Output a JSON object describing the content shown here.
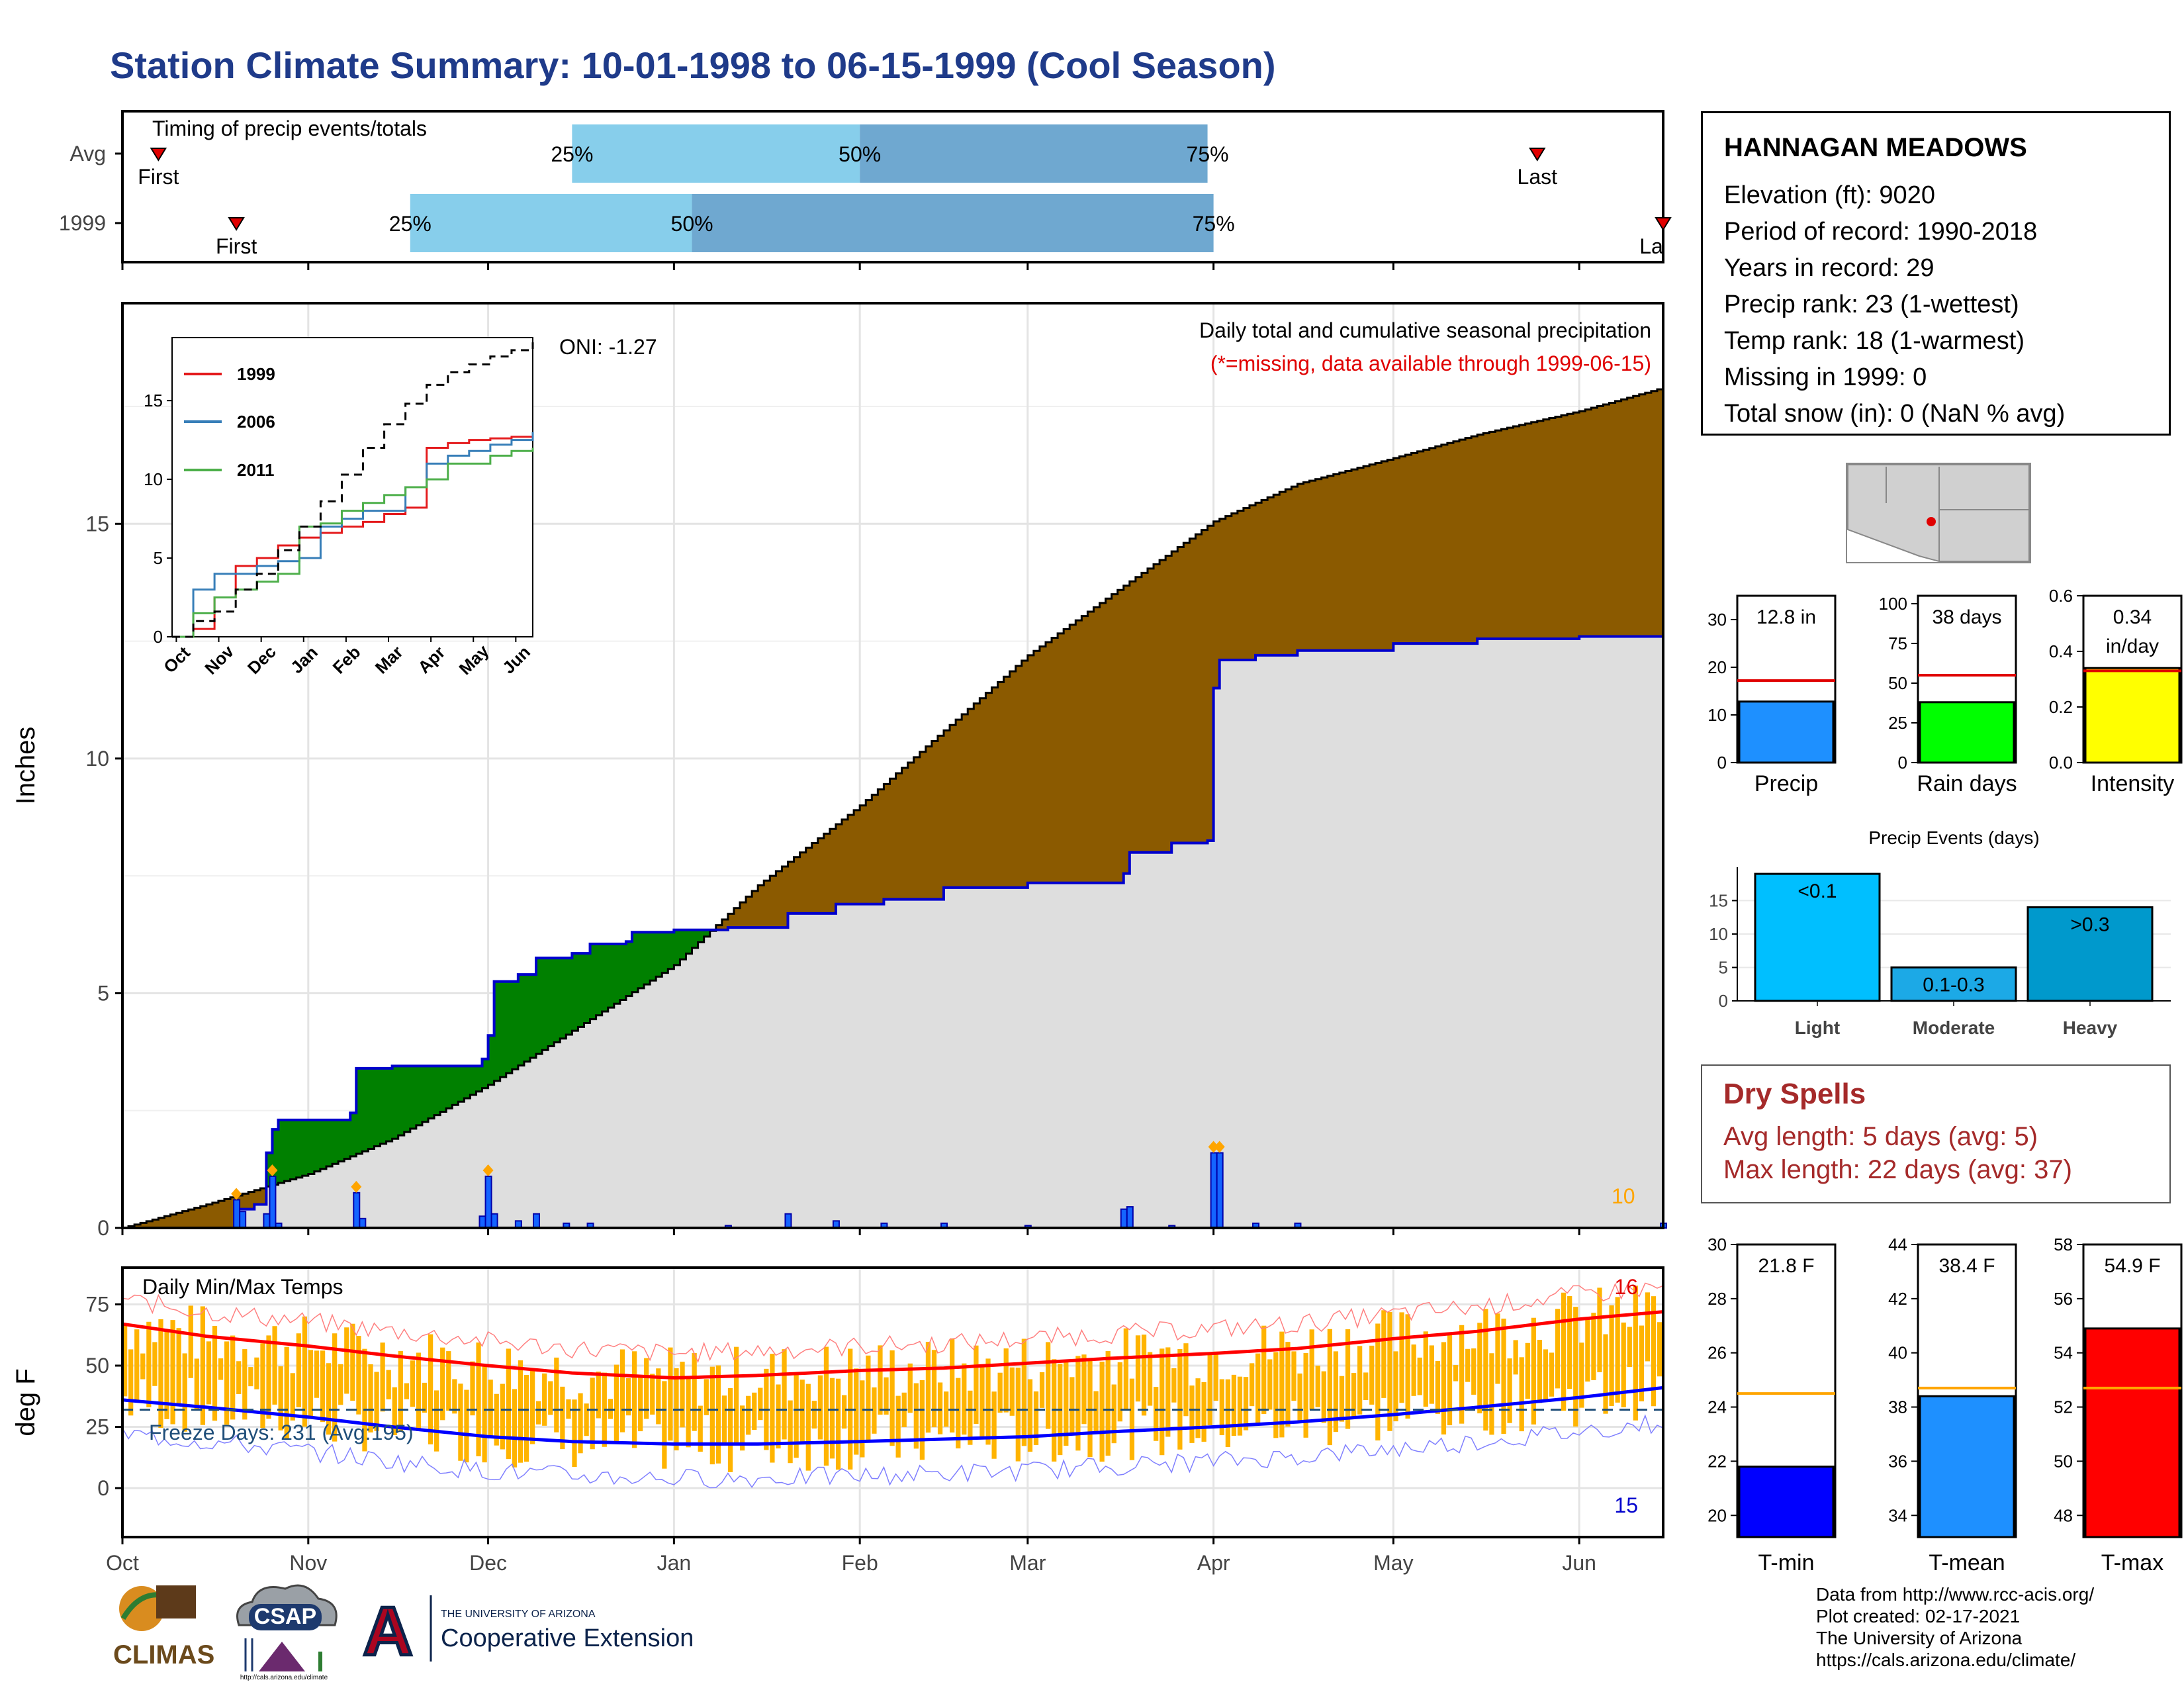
{
  "title": "Station Climate Summary: 10-01-1998 to 06-15-1999 (Cool Season)",
  "timing": {
    "label": "Timing of precip events/totals",
    "rows": [
      {
        "name": "Avg",
        "first_label": "First",
        "last_label": "Last",
        "first": "1998-10-07",
        "last": "1999-05-25",
        "p25": "1998-12-15",
        "p50": "1999-02-01",
        "p75": "1999-03-31",
        "p25_label": "25%",
        "p50_label": "50%",
        "p75_label": "75%"
      },
      {
        "name": "1999",
        "first_label": "First",
        "last_label": "La",
        "first": "1998-10-20",
        "last": "1999-06-15",
        "p25": "1998-11-18",
        "p50": "1999-01-04",
        "p75": "1999-04-01",
        "p25_label": "25%",
        "p50_label": "50%",
        "p75_label": "75%"
      }
    ]
  },
  "chart_data": [
    {
      "type": "area",
      "title": "Daily total and cumulative seasonal precipitation",
      "subtitle": "(*=missing, data available through 1999-06-15)",
      "ylabel": "Inches",
      "ylim": [
        0,
        19.7
      ],
      "yticks": [
        0,
        5,
        10,
        15
      ],
      "xticks": [
        "Oct",
        "Nov",
        "Dec",
        "Jan",
        "Feb",
        "Mar",
        "Apr",
        "May",
        "Jun"
      ],
      "oni_label": "ONI: -1.27",
      "count_label": "10",
      "avg_cumulative": {
        "name": "average",
        "points": [
          [
            "1998-10-01",
            0
          ],
          [
            "1998-10-15",
            0.5
          ],
          [
            "1998-11-01",
            1.15
          ],
          [
            "1998-11-15",
            1.9
          ],
          [
            "1998-12-01",
            3.05
          ],
          [
            "1998-12-15",
            4.2
          ],
          [
            "1999-01-01",
            5.6
          ],
          [
            "1999-01-15",
            7.3
          ],
          [
            "1999-02-01",
            9.0
          ],
          [
            "1999-02-15",
            10.6
          ],
          [
            "1999-03-01",
            12.2
          ],
          [
            "1999-03-15",
            13.5
          ],
          [
            "1999-04-01",
            15.05
          ],
          [
            "1999-04-15",
            15.85
          ],
          [
            "1999-05-01",
            16.4
          ],
          [
            "1999-05-15",
            16.9
          ],
          [
            "1999-06-01",
            17.4
          ],
          [
            "1999-06-15",
            17.9
          ]
        ]
      },
      "cumulative_1999": {
        "name": "1999",
        "points": [
          [
            "1998-10-01",
            0
          ],
          [
            "1998-10-20",
            0.4
          ],
          [
            "1998-10-23",
            0.5
          ],
          [
            "1998-10-25",
            1.6
          ],
          [
            "1998-10-26",
            2.1
          ],
          [
            "1998-10-27",
            2.3
          ],
          [
            "1998-11-08",
            2.45
          ],
          [
            "1998-11-09",
            3.4
          ],
          [
            "1998-11-15",
            3.45
          ],
          [
            "1998-11-30",
            3.6
          ],
          [
            "1998-12-01",
            4.1
          ],
          [
            "1998-12-02",
            5.25
          ],
          [
            "1998-12-06",
            5.4
          ],
          [
            "1998-12-09",
            5.75
          ],
          [
            "1998-12-15",
            5.85
          ],
          [
            "1998-12-18",
            6.05
          ],
          [
            "1998-12-24",
            6.1
          ],
          [
            "1998-12-25",
            6.3
          ],
          [
            "1999-01-01",
            6.35
          ],
          [
            "1999-01-04",
            6.35
          ],
          [
            "1999-01-10",
            6.4
          ],
          [
            "1999-01-20",
            6.7
          ],
          [
            "1999-01-28",
            6.9
          ],
          [
            "1999-02-05",
            7.0
          ],
          [
            "1999-02-15",
            7.25
          ],
          [
            "1999-03-01",
            7.35
          ],
          [
            "1999-03-17",
            7.55
          ],
          [
            "1999-03-18",
            8.0
          ],
          [
            "1999-03-25",
            8.2
          ],
          [
            "1999-03-31",
            8.25
          ],
          [
            "1999-04-01",
            11.5
          ],
          [
            "1999-04-02",
            12.1
          ],
          [
            "1999-04-08",
            12.2
          ],
          [
            "1999-04-15",
            12.3
          ],
          [
            "1999-05-01",
            12.45
          ],
          [
            "1999-05-15",
            12.55
          ],
          [
            "1999-06-01",
            12.6
          ],
          [
            "1999-06-15",
            12.8
          ]
        ]
      },
      "daily_bars": [
        [
          "1998-10-20",
          0.6
        ],
        [
          "1998-10-21",
          0.35
        ],
        [
          "1998-10-25",
          0.3
        ],
        [
          "1998-10-26",
          1.1
        ],
        [
          "1998-10-27",
          0.1
        ],
        [
          "1998-11-09",
          0.75
        ],
        [
          "1998-11-10",
          0.2
        ],
        [
          "1998-11-30",
          0.25
        ],
        [
          "1998-12-01",
          1.1
        ],
        [
          "1998-12-02",
          0.3
        ],
        [
          "1998-12-06",
          0.15
        ],
        [
          "1998-12-09",
          0.3
        ],
        [
          "1998-12-14",
          0.1
        ],
        [
          "1998-12-18",
          0.1
        ],
        [
          "1999-01-10",
          0.05
        ],
        [
          "1999-01-20",
          0.3
        ],
        [
          "1999-01-28",
          0.15
        ],
        [
          "1999-02-05",
          0.1
        ],
        [
          "1999-02-15",
          0.1
        ],
        [
          "1999-03-01",
          0.05
        ],
        [
          "1999-03-17",
          0.4
        ],
        [
          "1999-03-18",
          0.45
        ],
        [
          "1999-03-25",
          0.05
        ],
        [
          "1999-04-01",
          1.6
        ],
        [
          "1999-04-02",
          1.6
        ],
        [
          "1999-04-08",
          0.1
        ],
        [
          "1999-04-15",
          0.1
        ],
        [
          "1999-06-15",
          0.1
        ]
      ],
      "legend": [
        "1999",
        "2006",
        "2011"
      ]
    },
    {
      "type": "line",
      "title": "Daily Min/Max Temps",
      "ylabel": "deg F",
      "ylim": [
        -20,
        90
      ],
      "yticks": [
        0,
        25,
        50,
        75
      ],
      "xticks": [
        "Oct",
        "Nov",
        "Dec",
        "Jan",
        "Feb",
        "Mar",
        "Apr",
        "May",
        "Jun"
      ],
      "freeze_label": "Freeze Days: 231 (Avg:195)",
      "freeze_line": 32,
      "max_count_label": "16",
      "min_count_label": "15",
      "avg_max": [
        [
          "1998-10-01",
          67
        ],
        [
          "1998-10-15",
          62
        ],
        [
          "1998-11-01",
          58
        ],
        [
          "1998-11-15",
          54
        ],
        [
          "1998-12-01",
          50
        ],
        [
          "1998-12-15",
          47
        ],
        [
          "1999-01-01",
          45
        ],
        [
          "1999-01-15",
          46
        ],
        [
          "1999-02-01",
          48
        ],
        [
          "1999-02-15",
          49
        ],
        [
          "1999-03-01",
          51
        ],
        [
          "1999-03-15",
          53
        ],
        [
          "1999-04-01",
          55
        ],
        [
          "1999-04-15",
          57
        ],
        [
          "1999-05-01",
          61
        ],
        [
          "1999-05-15",
          64
        ],
        [
          "1999-06-01",
          69
        ],
        [
          "1999-06-15",
          72
        ]
      ],
      "avg_min": [
        [
          "1998-10-01",
          36
        ],
        [
          "1998-10-15",
          33
        ],
        [
          "1998-11-01",
          29
        ],
        [
          "1998-11-15",
          25
        ],
        [
          "1998-12-01",
          21
        ],
        [
          "1998-12-15",
          19
        ],
        [
          "1999-01-01",
          18
        ],
        [
          "1999-01-15",
          18
        ],
        [
          "1999-02-01",
          19
        ],
        [
          "1999-02-15",
          20
        ],
        [
          "1999-03-01",
          21
        ],
        [
          "1999-03-15",
          23
        ],
        [
          "1999-04-01",
          25
        ],
        [
          "1999-04-15",
          27
        ],
        [
          "1999-05-01",
          30
        ],
        [
          "1999-05-15",
          33
        ],
        [
          "1999-06-01",
          37
        ],
        [
          "1999-06-15",
          41
        ]
      ]
    },
    {
      "type": "line",
      "title": "",
      "xticks": [
        "Oct",
        "Nov",
        "Dec",
        "Jan",
        "Feb",
        "Mar",
        "Apr",
        "May",
        "Jun"
      ],
      "yticks": [
        0,
        5,
        10,
        15
      ],
      "series": [
        {
          "name": "1999",
          "color": "#e41a1c",
          "points": [
            [
              0,
              0
            ],
            [
              0.5,
              0.5
            ],
            [
              1.0,
              2.5
            ],
            [
              1.5,
              4.5
            ],
            [
              2.0,
              5.0
            ],
            [
              2.5,
              5.8
            ],
            [
              3.0,
              6.3
            ],
            [
              3.5,
              6.6
            ],
            [
              4.0,
              7.0
            ],
            [
              4.5,
              7.3
            ],
            [
              5.0,
              7.8
            ],
            [
              5.5,
              8.2
            ],
            [
              6.0,
              12.0
            ],
            [
              6.5,
              12.3
            ],
            [
              7.0,
              12.5
            ],
            [
              7.5,
              12.6
            ],
            [
              8.0,
              12.7
            ],
            [
              8.5,
              12.8
            ]
          ]
        },
        {
          "name": "2006",
          "color": "#377eb8",
          "points": [
            [
              0,
              0
            ],
            [
              0.5,
              3.0
            ],
            [
              1.0,
              4.0
            ],
            [
              1.5,
              4.0
            ],
            [
              2.0,
              4.5
            ],
            [
              2.5,
              4.8
            ],
            [
              3.0,
              5.0
            ],
            [
              3.5,
              7.0
            ],
            [
              4.0,
              7.5
            ],
            [
              4.5,
              8.0
            ],
            [
              5.0,
              8.0
            ],
            [
              5.5,
              9.5
            ],
            [
              6.0,
              11.0
            ],
            [
              6.5,
              11.5
            ],
            [
              7.0,
              11.8
            ],
            [
              7.5,
              12.2
            ],
            [
              8.0,
              12.5
            ],
            [
              8.5,
              13.0
            ]
          ]
        },
        {
          "name": "2011",
          "color": "#4daf4a",
          "points": [
            [
              0,
              0
            ],
            [
              0.5,
              1.5
            ],
            [
              1.0,
              2.5
            ],
            [
              1.5,
              3.0
            ],
            [
              2.0,
              3.5
            ],
            [
              2.5,
              4.0
            ],
            [
              3.0,
              7.0
            ],
            [
              3.5,
              7.2
            ],
            [
              4.0,
              8.0
            ],
            [
              4.5,
              8.5
            ],
            [
              5.0,
              9.0
            ],
            [
              5.5,
              9.5
            ],
            [
              6.0,
              10.0
            ],
            [
              6.5,
              11.0
            ],
            [
              7.0,
              11.0
            ],
            [
              7.5,
              11.5
            ],
            [
              8.0,
              11.8
            ],
            [
              8.5,
              12.0
            ]
          ]
        },
        {
          "name": "average",
          "color": "#000000",
          "points": [
            [
              0,
              0
            ],
            [
              0.5,
              1.0
            ],
            [
              1.0,
              1.6
            ],
            [
              1.5,
              3.0
            ],
            [
              2.0,
              4.0
            ],
            [
              2.5,
              5.5
            ],
            [
              3.0,
              7.0
            ],
            [
              3.5,
              8.6
            ],
            [
              4.0,
              10.3
            ],
            [
              4.5,
              12.0
            ],
            [
              5.0,
              13.5
            ],
            [
              5.5,
              14.8
            ],
            [
              6.0,
              16.0
            ],
            [
              6.5,
              16.8
            ],
            [
              7.0,
              17.3
            ],
            [
              7.5,
              17.8
            ],
            [
              8.0,
              18.2
            ],
            [
              8.5,
              18.7
            ]
          ]
        }
      ]
    },
    {
      "type": "bar",
      "categories": [
        "Precip"
      ],
      "values": [
        12.8
      ],
      "avg": 17.2,
      "ylim": [
        0,
        35
      ],
      "yticks": [
        0,
        10,
        20,
        30
      ],
      "value_label": "12.8 in",
      "xlabel": "Precip",
      "color": "#1e90ff"
    },
    {
      "type": "bar",
      "categories": [
        "Rain days"
      ],
      "values": [
        38
      ],
      "avg": 55,
      "ylim": [
        0,
        105
      ],
      "yticks": [
        0,
        25,
        50,
        75,
        100
      ],
      "value_label": "38 days",
      "xlabel": "Rain days",
      "color": "#00ff00"
    },
    {
      "type": "bar",
      "categories": [
        "Intensity"
      ],
      "values": [
        0.34
      ],
      "avg": 0.33,
      "ylim": [
        0,
        0.6
      ],
      "yticks": [
        "0.0",
        "0.2",
        "0.4",
        "0.6"
      ],
      "value_label": "0.34 in/day",
      "xlabel": "Intensity",
      "color": "#ffff00"
    },
    {
      "type": "bar",
      "title": "Precip Events (days)",
      "categories": [
        "Light",
        "Moderate",
        "Heavy"
      ],
      "values": [
        19,
        5,
        14
      ],
      "bar_labels": [
        "<0.1",
        "0.1-0.3",
        ">0.3"
      ],
      "ylim": [
        0,
        20
      ],
      "yticks": [
        0,
        5,
        10,
        15
      ],
      "colors": [
        "#00bfff",
        "#1ca9e6",
        "#0099cc"
      ]
    },
    {
      "type": "bar",
      "categories": [
        "T-min"
      ],
      "values": [
        21.8
      ],
      "avg": 24.5,
      "ylim": [
        19.2,
        30
      ],
      "yticks": [
        20,
        22,
        24,
        26,
        28,
        30
      ],
      "value_label": "21.8 F",
      "xlabel": "T-min",
      "color": "#0000ff"
    },
    {
      "type": "bar",
      "categories": [
        "T-mean"
      ],
      "values": [
        38.4
      ],
      "avg": 38.7,
      "ylim": [
        33.2,
        44
      ],
      "yticks": [
        34,
        36,
        38,
        40,
        42,
        44
      ],
      "value_label": "38.4 F",
      "xlabel": "T-mean",
      "color": "#1e90ff"
    },
    {
      "type": "bar",
      "categories": [
        "T-max"
      ],
      "values": [
        54.9
      ],
      "avg": 52.7,
      "ylim": [
        47.2,
        58
      ],
      "yticks": [
        48,
        50,
        52,
        54,
        56,
        58
      ],
      "value_label": "54.9 F",
      "xlabel": "T-max",
      "color": "#ff0000"
    }
  ],
  "station": {
    "name": "HANNAGAN MEADOWS",
    "rows": [
      "Elevation (ft): 9020",
      "Period of record: 1990-2018",
      "Years in record: 29",
      "Precip rank: 23 (1-wettest)",
      "Temp rank: 18 (1-warmest)",
      "Missing in 1999: 0",
      "Total snow (in): 0 (NaN % avg)"
    ]
  },
  "dry_spells": {
    "title": "Dry Spells",
    "avg_length": "Avg length: 5 days (avg: 5)",
    "max_length": "Max length: 22 days (avg: 37)"
  },
  "footer": [
    "Data from http://www.rcc-acis.org/",
    "Plot created: 02-17-2021",
    "The University of Arizona",
    "https://cals.arizona.edu/climate/"
  ],
  "logos": {
    "climas": "CLIMAS",
    "csap": "CSAP",
    "csap_url": "http://cals.arizona.edu/climate",
    "ua_small": "THE UNIVERSITY OF ARIZONA",
    "coop": "Cooperative Extension",
    "ua_letter": "A"
  },
  "colors": {
    "title": "#1f3b8a",
    "cum_avg": "#8b5a00",
    "cum_above": "#008000",
    "cum_1999": "#0000cd",
    "bars": "#ffb400",
    "tmax": "#ff0000",
    "tmin": "#0000ff",
    "dry": "#a52a2a"
  }
}
